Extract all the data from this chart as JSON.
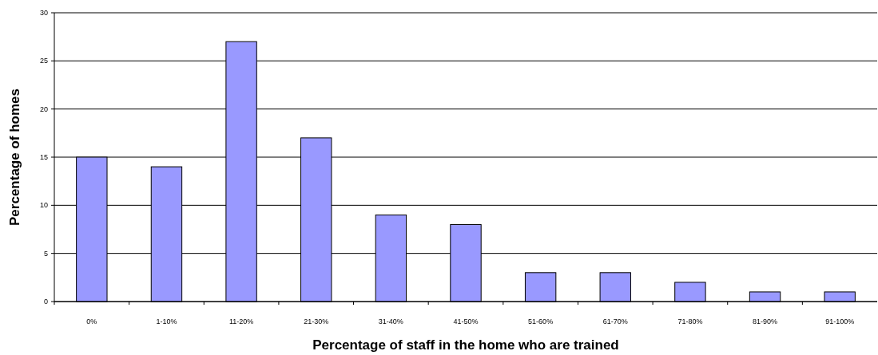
{
  "chart_data": {
    "type": "bar",
    "xlabel": "Percentage of staff in the home who are trained",
    "ylabel": "Percentage of homes",
    "categories": [
      "0%",
      "1-10%",
      "11-20%",
      "21-30%",
      "31-40%",
      "41-50%",
      "51-60%",
      "61-70%",
      "71-80%",
      "81-90%",
      "91-100%"
    ],
    "values": [
      15,
      14,
      27,
      17,
      9,
      8,
      3,
      3,
      2,
      1,
      1
    ],
    "color": "#9999ff",
    "ylim": [
      0,
      30
    ],
    "yticks": [
      0,
      5,
      10,
      15,
      20,
      25,
      30
    ],
    "grid": "y"
  }
}
